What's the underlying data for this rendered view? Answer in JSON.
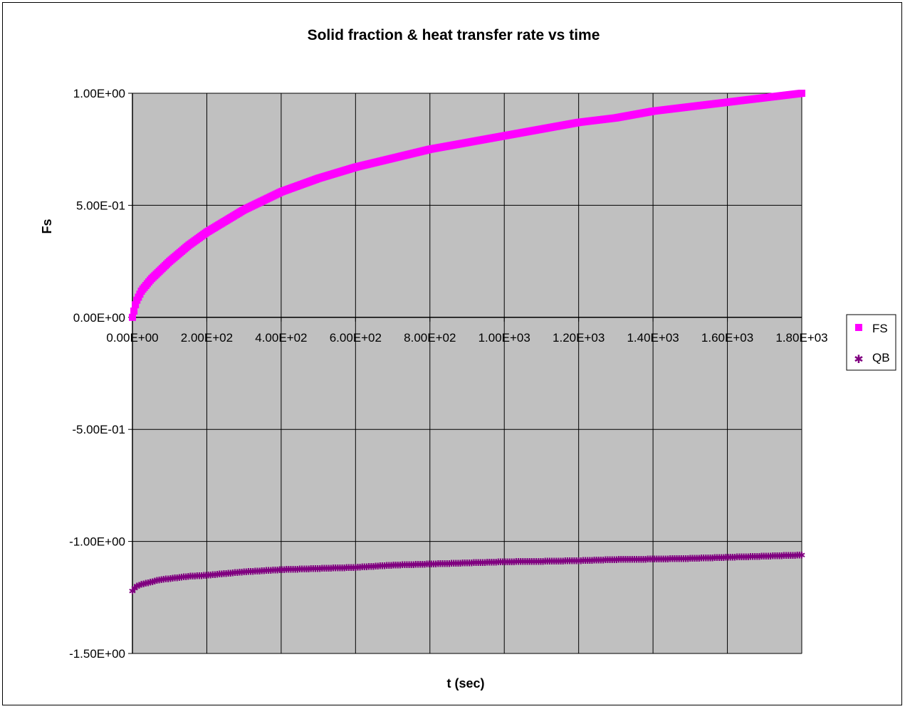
{
  "chart_data": {
    "type": "scatter",
    "title": "Solid fraction & heat transfer rate vs time",
    "xlabel": "t (sec)",
    "ylabel": "Fs",
    "xlim": [
      0,
      1800
    ],
    "ylim": [
      -1.5,
      1.0
    ],
    "x_ticks": [
      0,
      200,
      400,
      600,
      800,
      1000,
      1200,
      1400,
      1600,
      1800
    ],
    "x_tick_labels": [
      "0.00E+00",
      "2.00E+02",
      "4.00E+02",
      "6.00E+02",
      "8.00E+02",
      "1.00E+03",
      "1.20E+03",
      "1.40E+03",
      "1.60E+03",
      "1.80E+03"
    ],
    "y_ticks": [
      1.0,
      0.5,
      0.0,
      -0.5,
      -1.0,
      -1.5
    ],
    "y_tick_labels": [
      "1.00E+00",
      "5.00E-01",
      "0.00E+00",
      "-5.00E-01",
      "-1.00E+00",
      "-1.50E+00"
    ],
    "grid": true,
    "plot_background": "#c0c0c0",
    "legend_position": "right",
    "series": [
      {
        "name": "FS",
        "marker": "square",
        "color": "#ff00ff",
        "x": [
          0,
          10,
          25,
          50,
          75,
          100,
          150,
          200,
          250,
          300,
          400,
          500,
          600,
          700,
          800,
          900,
          1000,
          1100,
          1200,
          1300,
          1400,
          1500,
          1600,
          1700,
          1800
        ],
        "y": [
          0.0,
          0.07,
          0.12,
          0.17,
          0.21,
          0.25,
          0.32,
          0.38,
          0.43,
          0.48,
          0.56,
          0.62,
          0.67,
          0.71,
          0.75,
          0.78,
          0.81,
          0.84,
          0.87,
          0.89,
          0.92,
          0.94,
          0.96,
          0.98,
          1.0
        ]
      },
      {
        "name": "QB",
        "marker": "asterisk",
        "color": "#800080",
        "x": [
          0,
          10,
          25,
          50,
          75,
          100,
          150,
          200,
          300,
          400,
          500,
          600,
          700,
          800,
          900,
          1000,
          1100,
          1200,
          1300,
          1400,
          1500,
          1600,
          1700,
          1800
        ],
        "y": [
          -1.22,
          -1.2,
          -1.19,
          -1.18,
          -1.17,
          -1.165,
          -1.155,
          -1.15,
          -1.135,
          -1.125,
          -1.12,
          -1.115,
          -1.105,
          -1.1,
          -1.095,
          -1.09,
          -1.088,
          -1.085,
          -1.08,
          -1.078,
          -1.075,
          -1.07,
          -1.065,
          -1.06
        ]
      }
    ]
  }
}
